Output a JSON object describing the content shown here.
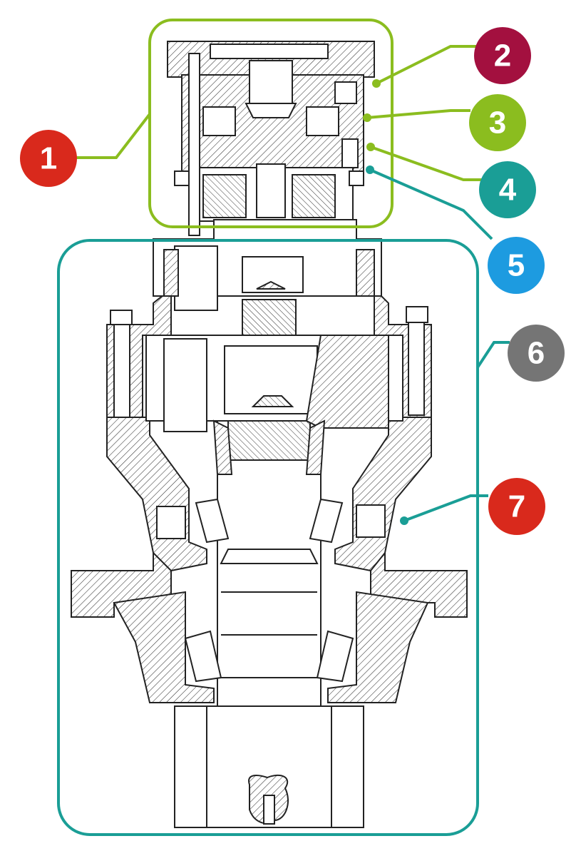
{
  "colors": {
    "green": "#8bbd1f",
    "teal": "#1a9e96",
    "red": "#d9291c",
    "maroon": "#a3103f",
    "blue": "#1d9be0",
    "gray": "#757575",
    "line": "#222222"
  },
  "callouts": [
    {
      "id": "1",
      "label": "1",
      "color": "red",
      "line_color": "green"
    },
    {
      "id": "2",
      "label": "2",
      "color": "maroon",
      "line_color": "green"
    },
    {
      "id": "3",
      "label": "3",
      "color": "green",
      "line_color": "green"
    },
    {
      "id": "4",
      "label": "4",
      "color": "teal",
      "line_color": "green"
    },
    {
      "id": "5",
      "label": "5",
      "color": "blue",
      "line_color": "teal"
    },
    {
      "id": "6",
      "label": "6",
      "color": "gray",
      "line_color": "teal"
    },
    {
      "id": "7",
      "label": "7",
      "color": "red",
      "line_color": "teal"
    }
  ]
}
